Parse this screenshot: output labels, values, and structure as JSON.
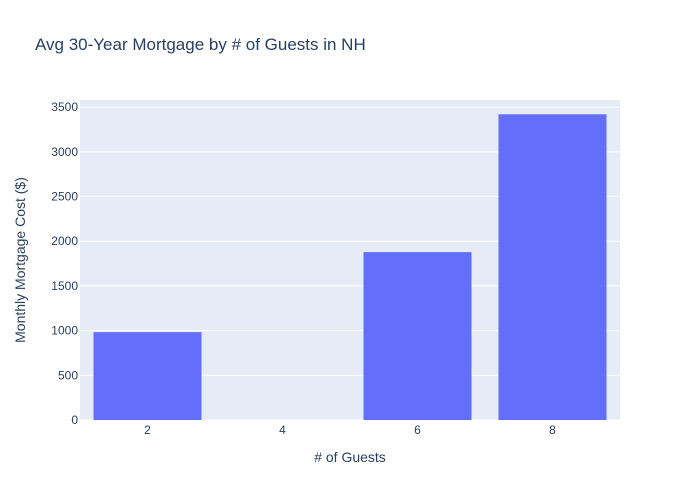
{
  "chart_data": {
    "type": "bar",
    "title": "Avg 30-Year Mortgage by # of Guests in NH",
    "xlabel": "# of Guests",
    "ylabel": "Monthly Mortgage Cost ($)",
    "categories": [
      "2",
      "4",
      "6",
      "8"
    ],
    "values": [
      983,
      0,
      1878,
      3420
    ],
    "ylim": [
      0,
      3580
    ],
    "y_ticks": [
      "0",
      "500",
      "1000",
      "1500",
      "2000",
      "2500",
      "3000",
      "3500"
    ],
    "grid": "on",
    "legend": "none",
    "colors": {
      "bar": "#636efa",
      "plot_background": "#e5ecf6",
      "gridline": "#ffffff",
      "text": "#2a3f5f"
    }
  }
}
